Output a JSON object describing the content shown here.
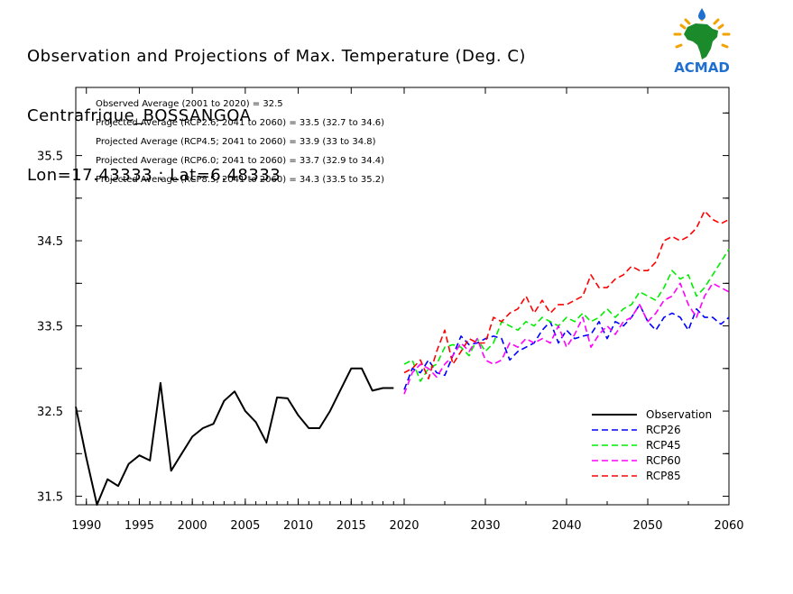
{
  "title": {
    "line1": "Observation and Projections of Max. Temperature (Deg. C)",
    "line2": "Centrafrique_BOSSANGOA",
    "line3": "Lon=17.43333 : Lat=6.48333"
  },
  "logo": {
    "text": "ACMAD",
    "icon": "acmad-africa-logo"
  },
  "colors": {
    "observation": "#000000",
    "rcp26": "#0000ff",
    "rcp45": "#00ee00",
    "rcp60": "#ff00ff",
    "rcp85": "#ff0000"
  },
  "chart_data": {
    "type": "line",
    "xlim": [
      1989,
      2060
    ],
    "ylim": [
      31.4,
      36.3
    ],
    "x_ticks": [
      {
        "value": 1990,
        "label": "1990"
      },
      {
        "value": 1995,
        "label": "1995"
      },
      {
        "value": 2000,
        "label": "2000"
      },
      {
        "value": 2005,
        "label": "2005"
      },
      {
        "value": 2010,
        "label": "2010"
      },
      {
        "value": 2015,
        "label": "2015"
      },
      {
        "value": 2020,
        "label": "2020"
      },
      {
        "value": 2030,
        "label": "2030"
      },
      {
        "value": 2040,
        "label": "2040"
      },
      {
        "value": 2050,
        "label": "2050"
      },
      {
        "value": 2060,
        "label": "2060"
      }
    ],
    "y_ticks": [
      {
        "value": 31.5,
        "label": "31.5"
      },
      {
        "value": 32.5,
        "label": "32.5"
      },
      {
        "value": 33.5,
        "label": "33.5"
      },
      {
        "value": 34.5,
        "label": "34.5"
      },
      {
        "value": 35.5,
        "label": "35.5"
      }
    ],
    "annotations": [
      "Observed Average (2001 to 2020) = 32.5",
      "Projected Average (RCP2.6; 2041 to 2060) = 33.5 (32.7 to 34.6)",
      "Projected Average (RCP4.5; 2041 to 2060) = 33.9 (33 to 34.8)",
      "Projected Average (RCP6.0; 2041 to 2060) = 33.7 (32.9 to 34.4)",
      "Projected Average (RCP8.5; 2041 to 2060) = 34.3 (33.5 to 35.2)"
    ],
    "legend_position": "bottom-right",
    "series": [
      {
        "name": "Observation",
        "color": "#000000",
        "dashed": false,
        "x": [
          1989,
          1990,
          1991,
          1992,
          1993,
          1994,
          1995,
          1996,
          1997,
          1998,
          1999,
          2000,
          2001,
          2002,
          2003,
          2004,
          2005,
          2006,
          2007,
          2008,
          2009,
          2010,
          2011,
          2012,
          2013,
          2014,
          2015,
          2016,
          2017,
          2018,
          2019
        ],
        "y": [
          32.55,
          31.95,
          31.4,
          31.7,
          31.62,
          31.88,
          31.98,
          31.92,
          32.83,
          31.8,
          32.0,
          32.2,
          32.3,
          32.35,
          32.62,
          32.73,
          32.5,
          32.37,
          32.13,
          32.66,
          32.65,
          32.45,
          32.3,
          32.3,
          32.5,
          32.75,
          33.0,
          33.0,
          32.74,
          32.77,
          32.77
        ]
      },
      {
        "name": "RCP26",
        "color": "#0000ff",
        "dashed": true,
        "x": [
          2020,
          2021,
          2022,
          2023,
          2024,
          2025,
          2026,
          2027,
          2028,
          2029,
          2030,
          2031,
          2032,
          2033,
          2034,
          2035,
          2036,
          2037,
          2038,
          2039,
          2040,
          2041,
          2042,
          2043,
          2044,
          2045,
          2046,
          2047,
          2048,
          2049,
          2050,
          2051,
          2052,
          2053,
          2054,
          2055,
          2056,
          2057,
          2058,
          2059,
          2060
        ],
        "y": [
          32.75,
          33.0,
          32.95,
          33.1,
          32.95,
          32.92,
          33.15,
          33.38,
          33.28,
          33.3,
          33.35,
          33.38,
          33.35,
          33.1,
          33.2,
          33.25,
          33.3,
          33.45,
          33.55,
          33.3,
          33.45,
          33.35,
          33.38,
          33.4,
          33.55,
          33.35,
          33.55,
          33.5,
          33.6,
          33.75,
          33.55,
          33.45,
          33.6,
          33.65,
          33.6,
          33.45,
          33.7,
          33.6,
          33.6,
          33.52,
          33.6
        ]
      },
      {
        "name": "RCP45",
        "color": "#00ee00",
        "dashed": true,
        "x": [
          2020,
          2021,
          2022,
          2023,
          2024,
          2025,
          2026,
          2027,
          2028,
          2029,
          2030,
          2031,
          2032,
          2033,
          2034,
          2035,
          2036,
          2037,
          2038,
          2039,
          2040,
          2041,
          2042,
          2043,
          2044,
          2045,
          2046,
          2047,
          2048,
          2049,
          2050,
          2051,
          2052,
          2053,
          2054,
          2055,
          2056,
          2057,
          2058,
          2059,
          2060
        ],
        "y": [
          33.05,
          33.1,
          32.85,
          33.0,
          33.05,
          33.25,
          33.28,
          33.25,
          33.15,
          33.35,
          33.2,
          33.3,
          33.55,
          33.5,
          33.45,
          33.55,
          33.5,
          33.6,
          33.55,
          33.5,
          33.6,
          33.55,
          33.65,
          33.55,
          33.6,
          33.7,
          33.6,
          33.7,
          33.75,
          33.9,
          33.85,
          33.8,
          33.95,
          34.15,
          34.05,
          34.1,
          33.85,
          33.95,
          34.1,
          34.25,
          34.4
        ]
      },
      {
        "name": "RCP60",
        "color": "#ff00ff",
        "dashed": true,
        "x": [
          2020,
          2021,
          2022,
          2023,
          2024,
          2025,
          2026,
          2027,
          2028,
          2029,
          2030,
          2031,
          2032,
          2033,
          2034,
          2035,
          2036,
          2037,
          2038,
          2039,
          2040,
          2041,
          2042,
          2043,
          2044,
          2045,
          2046,
          2047,
          2048,
          2049,
          2050,
          2051,
          2052,
          2053,
          2054,
          2055,
          2056,
          2057,
          2058,
          2059,
          2060
        ],
        "y": [
          32.7,
          32.95,
          33.05,
          33.0,
          32.9,
          33.05,
          33.15,
          33.3,
          33.2,
          33.35,
          33.1,
          33.05,
          33.1,
          33.3,
          33.25,
          33.35,
          33.3,
          33.35,
          33.3,
          33.5,
          33.25,
          33.4,
          33.6,
          33.25,
          33.4,
          33.5,
          33.4,
          33.55,
          33.6,
          33.75,
          33.55,
          33.65,
          33.8,
          33.85,
          34.0,
          33.75,
          33.6,
          33.85,
          34.0,
          33.95,
          33.9
        ]
      },
      {
        "name": "RCP85",
        "color": "#ff0000",
        "dashed": true,
        "x": [
          2020,
          2021,
          2022,
          2023,
          2024,
          2025,
          2026,
          2027,
          2028,
          2029,
          2030,
          2031,
          2032,
          2033,
          2034,
          2035,
          2036,
          2037,
          2038,
          2039,
          2040,
          2041,
          2042,
          2043,
          2044,
          2045,
          2046,
          2047,
          2048,
          2049,
          2050,
          2051,
          2052,
          2053,
          2054,
          2055,
          2056,
          2057,
          2058,
          2059,
          2060
        ],
        "y": [
          32.95,
          33.0,
          33.1,
          32.88,
          33.2,
          33.45,
          33.05,
          33.2,
          33.35,
          33.3,
          33.3,
          33.6,
          33.55,
          33.65,
          33.7,
          33.85,
          33.65,
          33.8,
          33.65,
          33.75,
          33.75,
          33.8,
          33.85,
          34.1,
          33.95,
          33.95,
          34.05,
          34.1,
          34.2,
          34.15,
          34.15,
          34.25,
          34.5,
          34.55,
          34.5,
          34.55,
          34.65,
          34.85,
          34.75,
          34.7,
          34.75
        ]
      }
    ]
  }
}
